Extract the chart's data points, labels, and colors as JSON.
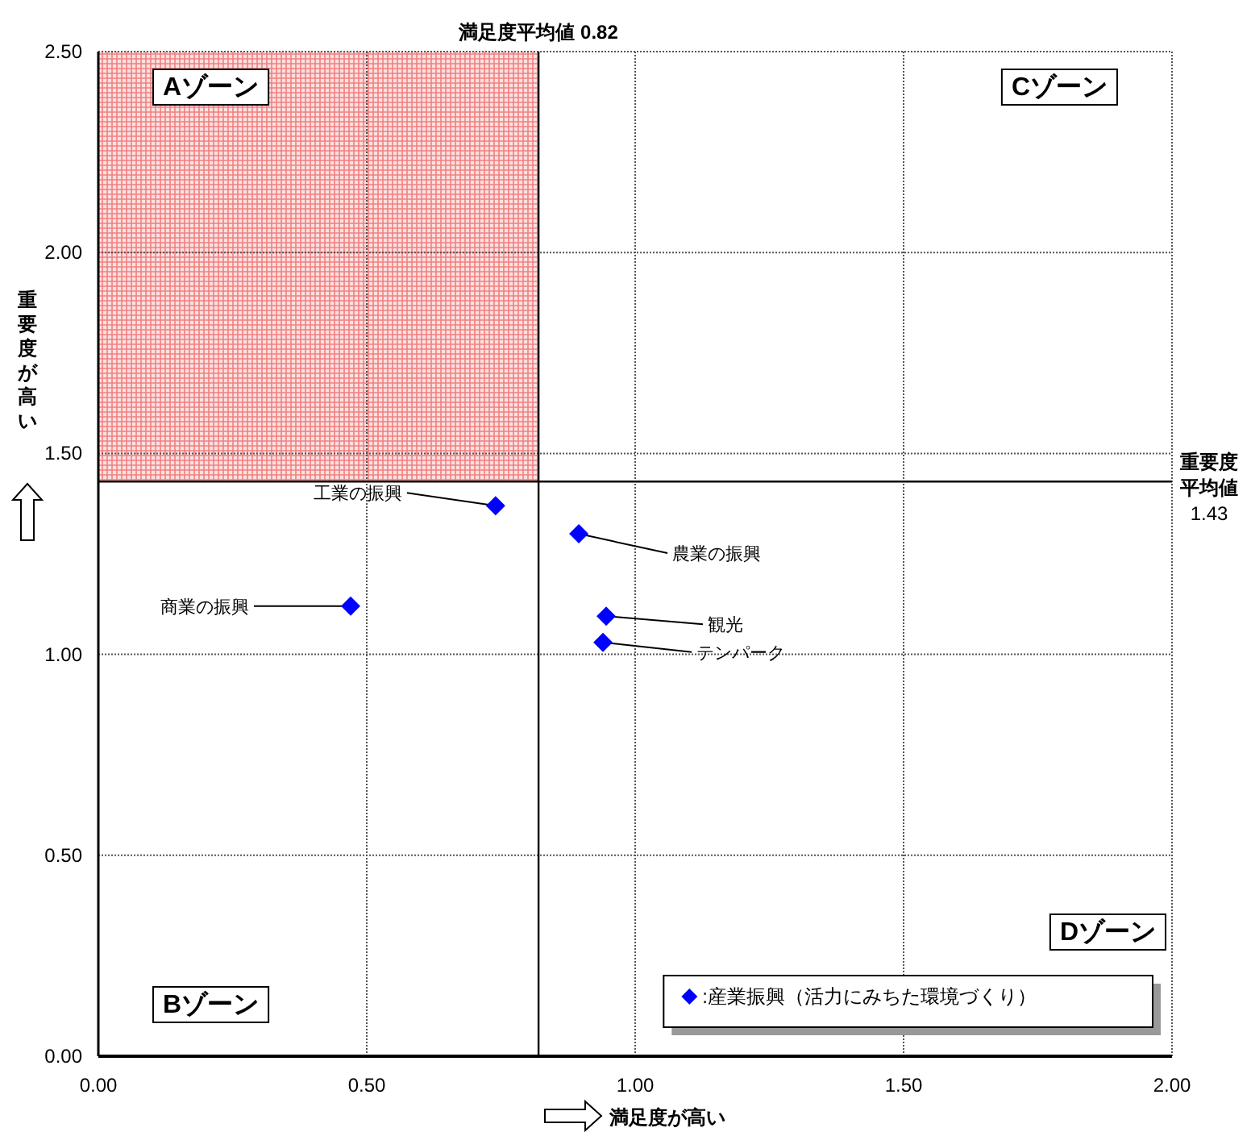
{
  "chart_data": {
    "type": "scatter",
    "xlabel": "満足度が高い",
    "ylabel": "重要度が高い",
    "xlim": [
      0,
      2
    ],
    "ylim": [
      0,
      2.5
    ],
    "xticks": [
      {
        "value": 0,
        "label": "0.00"
      },
      {
        "value": 0.5,
        "label": "0.50"
      },
      {
        "value": 1,
        "label": "1.00"
      },
      {
        "value": 1.5,
        "label": "1.50"
      },
      {
        "value": 2,
        "label": "2.00"
      }
    ],
    "yticks": [
      {
        "value": 0,
        "label": "0.00"
      },
      {
        "value": 0.5,
        "label": "0.50"
      },
      {
        "value": 1,
        "label": "1.00"
      },
      {
        "value": 1.5,
        "label": "1.50"
      },
      {
        "value": 2,
        "label": "2.00"
      },
      {
        "value": 2.5,
        "label": "2.50"
      }
    ],
    "grid": true,
    "marker": "diamond",
    "legend": "bottom right",
    "series": [
      {
        "name": ":産業振興（活力にみちた環境づくり）",
        "color": "#0000ff",
        "x": [
          0.74,
          0.895,
          0.47,
          0.946,
          0.94
        ],
        "values": [
          1.37,
          1.3,
          1.12,
          1.095,
          1.03
        ]
      }
    ],
    "ref_lines": [
      {
        "axis": "x",
        "value": 0.82,
        "label": "満足度平均値 0.82",
        "color": "#000000"
      },
      {
        "axis": "y",
        "value": 1.43,
        "label": "重要度平均値 1.43",
        "color": "#000000"
      }
    ],
    "bands": [
      {
        "axis": "x",
        "from": 0,
        "to": 0.82,
        "label": "Aゾーン",
        "color": "#f08080"
      }
    ],
    "annotations": [
      {
        "text": "工業の振興",
        "x": 0.74,
        "y": 1.37
      },
      {
        "text": "農業の振興",
        "x": 0.895,
        "y": 1.3
      },
      {
        "text": "商業の振興",
        "x": 0.47,
        "y": 1.12
      },
      {
        "text": "観光",
        "x": 0.946,
        "y": 1.095
      },
      {
        "text": "テンパーク",
        "x": 0.94,
        "y": 1.03
      },
      "Cゾーン",
      "Bゾーン",
      "Dゾーン"
    ]
  }
}
